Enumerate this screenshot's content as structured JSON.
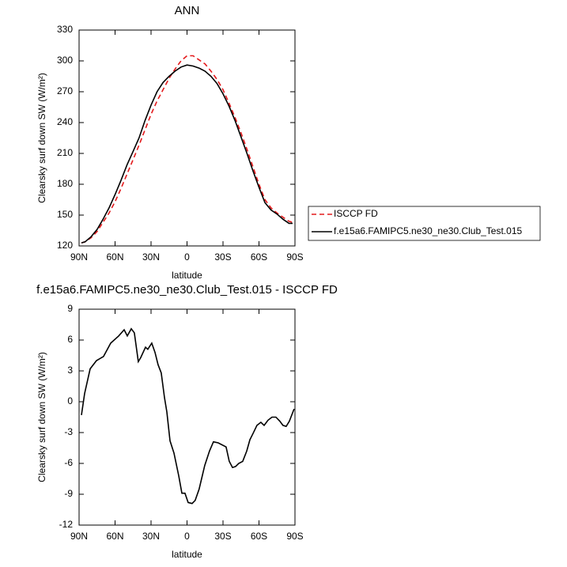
{
  "chart_data": [
    {
      "type": "line",
      "title": "ANN",
      "xlabel": "latitude",
      "ylabel": "Clearsky surf down SW (W/m²)",
      "xlim": [
        90,
        -90
      ],
      "xticks": [
        {
          "value": 90,
          "label": "90N"
        },
        {
          "value": 60,
          "label": "60N"
        },
        {
          "value": 30,
          "label": "30N"
        },
        0,
        {
          "value": -30,
          "label": "30S"
        },
        {
          "value": -60,
          "label": "60S"
        },
        {
          "value": -90,
          "label": "90S"
        }
      ],
      "ylim": [
        120,
        330
      ],
      "yticks": [
        120,
        150,
        180,
        210,
        240,
        270,
        300,
        330
      ],
      "legend": "right",
      "x": [
        88,
        85,
        80,
        75,
        70,
        65,
        60,
        55,
        50,
        45,
        40,
        35,
        30,
        25,
        20,
        15,
        10,
        5,
        0,
        -5,
        -10,
        -15,
        -20,
        -25,
        -30,
        -35,
        -40,
        -45,
        -50,
        -55,
        -60,
        -65,
        -70,
        -75,
        -80,
        -85,
        -88
      ],
      "series": [
        {
          "name": "ISCCP FD",
          "color": "#e41a1c",
          "dash": "dashed",
          "values": [
            123,
            124,
            128,
            134,
            143,
            152,
            163,
            176,
            190,
            204,
            218,
            233,
            248,
            261,
            272,
            283,
            292,
            300,
            305,
            305,
            301,
            297,
            290,
            282,
            272,
            259,
            245,
            230,
            214,
            197,
            180,
            165,
            157,
            152,
            148,
            144,
            143
          ]
        },
        {
          "name": "f.e15a6.FAMIPC5.ne30_ne30.Club_Test.015",
          "color": "#000000",
          "dash": "solid",
          "values": [
            123,
            124,
            129,
            136,
            146,
            157,
            170,
            184,
            199,
            212,
            225,
            242,
            257,
            270,
            279,
            285,
            290,
            294,
            296,
            295,
            293,
            290,
            285,
            278,
            268,
            256,
            242,
            226,
            210,
            193,
            177,
            162,
            155,
            151,
            146,
            142,
            142
          ]
        }
      ]
    },
    {
      "type": "line",
      "title": "f.e15a6.FAMIPC5.ne30_ne30.Club_Test.015 - ISCCP FD",
      "xlabel": "latitude",
      "ylabel": "Clearsky surf down SW (W/m²)",
      "xlim": [
        90,
        -90
      ],
      "xticks": [
        {
          "value": 90,
          "label": "90N"
        },
        {
          "value": 60,
          "label": "60N"
        },
        {
          "value": 30,
          "label": "30N"
        },
        0,
        {
          "value": -30,
          "label": "30S"
        },
        {
          "value": -60,
          "label": "60S"
        },
        {
          "value": -90,
          "label": "90S"
        }
      ],
      "ylim": [
        -12,
        9
      ],
      "yticks": [
        -12,
        -9,
        -6,
        -3,
        0,
        3,
        6,
        9
      ],
      "x": [
        88,
        85.4,
        80.8,
        75.5,
        69.6,
        63.6,
        57,
        52.4,
        49.8,
        46.5,
        43.9,
        40.6,
        38.6,
        34.6,
        32.7,
        29.4,
        26.7,
        24.1,
        21.5,
        18.8,
        16.8,
        14.2,
        10.9,
        6.9,
        4.3,
        1.7,
        -0.9,
        -4.2,
        -6.8,
        -10.1,
        -14.8,
        -18.7,
        -22,
        -26,
        -32.6,
        -35.2,
        -37.9,
        -40.5,
        -43.1,
        -46.4,
        -49.8,
        -52.4,
        -55,
        -58.3,
        -61.6,
        -64.3,
        -67.5,
        -70.8,
        -74.1,
        -77.4,
        -80,
        -82.7,
        -85.3,
        -89.3
      ],
      "series": [
        {
          "name": null,
          "color": "#000000",
          "dash": "solid",
          "values": [
            -1.3,
            0.8,
            3.2,
            4.0,
            4.4,
            5.7,
            6.4,
            7.0,
            6.4,
            7.1,
            6.7,
            3.9,
            4.3,
            5.3,
            5.1,
            5.7,
            4.8,
            3.6,
            2.8,
            0.4,
            -1,
            -3.8,
            -5,
            -7.2,
            -8.9,
            -8.9,
            -9.8,
            -9.9,
            -9.6,
            -8.5,
            -6.2,
            -4.8,
            -3.9,
            -4.0,
            -4.4,
            -5.8,
            -6.4,
            -6.3,
            -6.0,
            -5.8,
            -4.8,
            -3.7,
            -3.1,
            -2.3,
            -2.0,
            -2.3,
            -1.8,
            -1.5,
            -1.5,
            -1.9,
            -2.3,
            -2.4,
            -1.9,
            -0.7
          ]
        }
      ]
    }
  ]
}
